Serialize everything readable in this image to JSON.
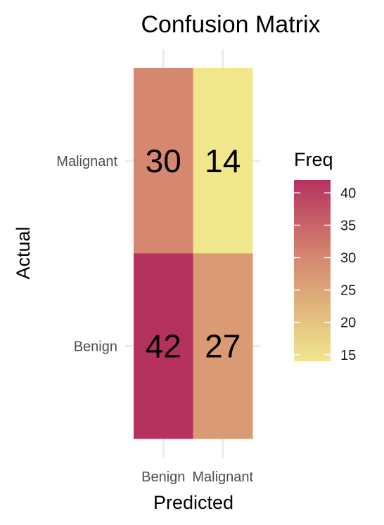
{
  "chart_data": {
    "type": "heatmap",
    "title": "Confusion Matrix",
    "xlabel": "Predicted",
    "ylabel": "Actual",
    "x_categories": [
      "Benign",
      "Malignant"
    ],
    "y_categories": [
      "Benign",
      "Malignant"
    ],
    "cells": [
      {
        "predicted": "Benign",
        "actual": "Malignant",
        "value": 30
      },
      {
        "predicted": "Malignant",
        "actual": "Malignant",
        "value": 14
      },
      {
        "predicted": "Benign",
        "actual": "Benign",
        "value": 42
      },
      {
        "predicted": "Malignant",
        "actual": "Benign",
        "value": 27
      }
    ],
    "legend": {
      "title": "Freq",
      "placement": "right",
      "ticks": [
        15,
        20,
        25,
        30,
        35,
        40
      ],
      "range": [
        14,
        42
      ],
      "colors": [
        "#f0e68c",
        "#b5325f"
      ]
    },
    "grid": true
  }
}
